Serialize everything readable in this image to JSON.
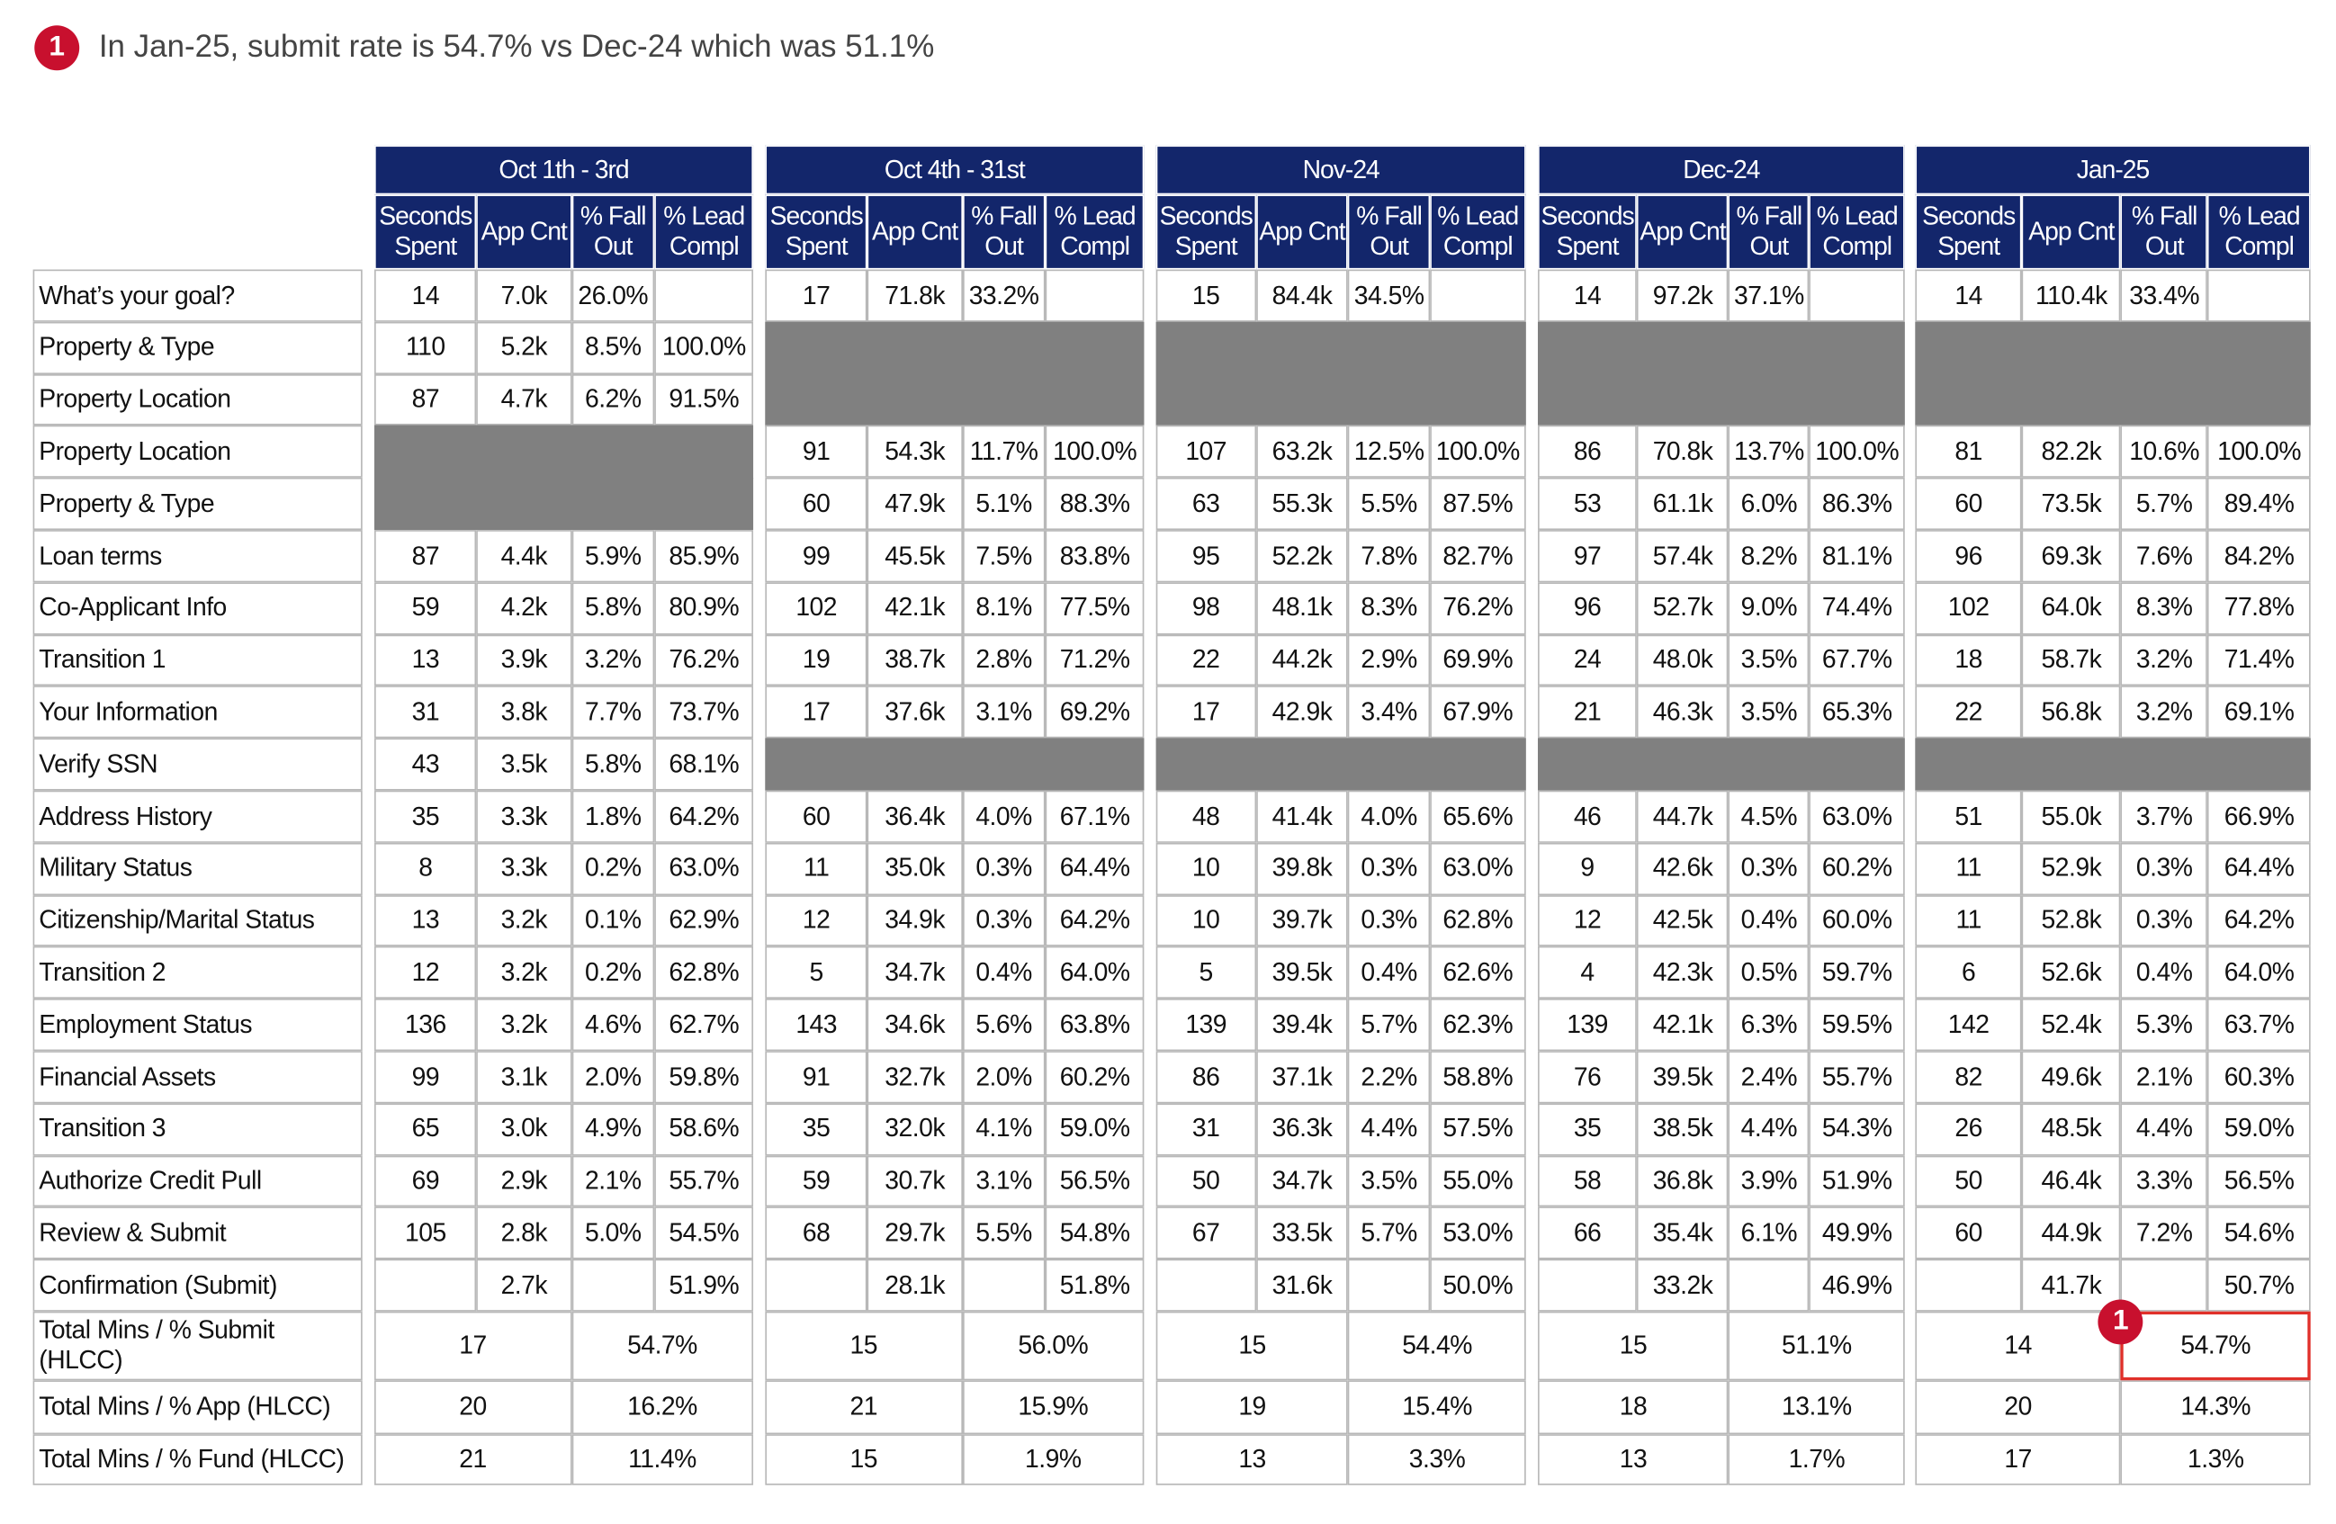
{
  "callout_marker": "1",
  "note": "In Jan-25, submit rate is 54.7% vs Dec-24 which was 51.1%",
  "groups": [
    "Oct 1th - 3rd",
    "Oct 4th - 31st",
    "Nov-24",
    "Dec-24",
    "Jan-25"
  ],
  "column_headers": [
    "Seconds Spent",
    "App Cnt",
    "% Fall Out",
    "% Lead Compl"
  ],
  "rows": [
    {
      "label": "What’s your goal?",
      "cells": [
        [
          14,
          "7.0k",
          "26.0%",
          null
        ],
        [
          17,
          "71.8k",
          "33.2%",
          null
        ],
        [
          15,
          "84.4k",
          "34.5%",
          null
        ],
        [
          14,
          "97.2k",
          "37.1%",
          null
        ],
        [
          14,
          "110.4k",
          "33.4%",
          null
        ]
      ]
    },
    {
      "label": "Property & Type",
      "cells": [
        [
          110,
          "5.2k",
          "8.5%",
          "100.0%"
        ],
        null,
        null,
        null,
        null
      ]
    },
    {
      "label": "Property Location",
      "cells": [
        [
          87,
          "4.7k",
          "6.2%",
          "91.5%"
        ],
        null,
        null,
        null,
        null
      ]
    },
    {
      "label": "Property Location",
      "cells": [
        null,
        [
          91,
          "54.3k",
          "11.7%",
          "100.0%"
        ],
        [
          107,
          "63.2k",
          "12.5%",
          "100.0%"
        ],
        [
          86,
          "70.8k",
          "13.7%",
          "100.0%"
        ],
        [
          81,
          "82.2k",
          "10.6%",
          "100.0%"
        ]
      ]
    },
    {
      "label": "Property & Type",
      "cells": [
        null,
        [
          60,
          "47.9k",
          "5.1%",
          "88.3%"
        ],
        [
          63,
          "55.3k",
          "5.5%",
          "87.5%"
        ],
        [
          53,
          "61.1k",
          "6.0%",
          "86.3%"
        ],
        [
          60,
          "73.5k",
          "5.7%",
          "89.4%"
        ]
      ]
    },
    {
      "label": "Loan terms",
      "cells": [
        [
          87,
          "4.4k",
          "5.9%",
          "85.9%"
        ],
        [
          99,
          "45.5k",
          "7.5%",
          "83.8%"
        ],
        [
          95,
          "52.2k",
          "7.8%",
          "82.7%"
        ],
        [
          97,
          "57.4k",
          "8.2%",
          "81.1%"
        ],
        [
          96,
          "69.3k",
          "7.6%",
          "84.2%"
        ]
      ]
    },
    {
      "label": "Co-Applicant Info",
      "cells": [
        [
          59,
          "4.2k",
          "5.8%",
          "80.9%"
        ],
        [
          102,
          "42.1k",
          "8.1%",
          "77.5%"
        ],
        [
          98,
          "48.1k",
          "8.3%",
          "76.2%"
        ],
        [
          96,
          "52.7k",
          "9.0%",
          "74.4%"
        ],
        [
          102,
          "64.0k",
          "8.3%",
          "77.8%"
        ]
      ]
    },
    {
      "label": "Transition 1",
      "cells": [
        [
          13,
          "3.9k",
          "3.2%",
          "76.2%"
        ],
        [
          19,
          "38.7k",
          "2.8%",
          "71.2%"
        ],
        [
          22,
          "44.2k",
          "2.9%",
          "69.9%"
        ],
        [
          24,
          "48.0k",
          "3.5%",
          "67.7%"
        ],
        [
          18,
          "58.7k",
          "3.2%",
          "71.4%"
        ]
      ]
    },
    {
      "label": "Your Information",
      "cells": [
        [
          31,
          "3.8k",
          "7.7%",
          "73.7%"
        ],
        [
          17,
          "37.6k",
          "3.1%",
          "69.2%"
        ],
        [
          17,
          "42.9k",
          "3.4%",
          "67.9%"
        ],
        [
          21,
          "46.3k",
          "3.5%",
          "65.3%"
        ],
        [
          22,
          "56.8k",
          "3.2%",
          "69.1%"
        ]
      ]
    },
    {
      "label": "Verify SSN",
      "cells": [
        [
          43,
          "3.5k",
          "5.8%",
          "68.1%"
        ],
        null,
        null,
        null,
        null
      ]
    },
    {
      "label": "Address History",
      "cells": [
        [
          35,
          "3.3k",
          "1.8%",
          "64.2%"
        ],
        [
          60,
          "36.4k",
          "4.0%",
          "67.1%"
        ],
        [
          48,
          "41.4k",
          "4.0%",
          "65.6%"
        ],
        [
          46,
          "44.7k",
          "4.5%",
          "63.0%"
        ],
        [
          51,
          "55.0k",
          "3.7%",
          "66.9%"
        ]
      ]
    },
    {
      "label": "Military Status",
      "cells": [
        [
          8,
          "3.3k",
          "0.2%",
          "63.0%"
        ],
        [
          11,
          "35.0k",
          "0.3%",
          "64.4%"
        ],
        [
          10,
          "39.8k",
          "0.3%",
          "63.0%"
        ],
        [
          9,
          "42.6k",
          "0.3%",
          "60.2%"
        ],
        [
          11,
          "52.9k",
          "0.3%",
          "64.4%"
        ]
      ]
    },
    {
      "label": "Citizenship/Marital Status",
      "cells": [
        [
          13,
          "3.2k",
          "0.1%",
          "62.9%"
        ],
        [
          12,
          "34.9k",
          "0.3%",
          "64.2%"
        ],
        [
          10,
          "39.7k",
          "0.3%",
          "62.8%"
        ],
        [
          12,
          "42.5k",
          "0.4%",
          "60.0%"
        ],
        [
          11,
          "52.8k",
          "0.3%",
          "64.2%"
        ]
      ]
    },
    {
      "label": "Transition 2",
      "cells": [
        [
          12,
          "3.2k",
          "0.2%",
          "62.8%"
        ],
        [
          5,
          "34.7k",
          "0.4%",
          "64.0%"
        ],
        [
          5,
          "39.5k",
          "0.4%",
          "62.6%"
        ],
        [
          4,
          "42.3k",
          "0.5%",
          "59.7%"
        ],
        [
          6,
          "52.6k",
          "0.4%",
          "64.0%"
        ]
      ]
    },
    {
      "label": "Employment Status",
      "cells": [
        [
          136,
          "3.2k",
          "4.6%",
          "62.7%"
        ],
        [
          143,
          "34.6k",
          "5.6%",
          "63.8%"
        ],
        [
          139,
          "39.4k",
          "5.7%",
          "62.3%"
        ],
        [
          139,
          "42.1k",
          "6.3%",
          "59.5%"
        ],
        [
          142,
          "52.4k",
          "5.3%",
          "63.7%"
        ]
      ]
    },
    {
      "label": "Financial Assets",
      "cells": [
        [
          99,
          "3.1k",
          "2.0%",
          "59.8%"
        ],
        [
          91,
          "32.7k",
          "2.0%",
          "60.2%"
        ],
        [
          86,
          "37.1k",
          "2.2%",
          "58.8%"
        ],
        [
          76,
          "39.5k",
          "2.4%",
          "55.7%"
        ],
        [
          82,
          "49.6k",
          "2.1%",
          "60.3%"
        ]
      ]
    },
    {
      "label": "Transition 3",
      "cells": [
        [
          65,
          "3.0k",
          "4.9%",
          "58.6%"
        ],
        [
          35,
          "32.0k",
          "4.1%",
          "59.0%"
        ],
        [
          31,
          "36.3k",
          "4.4%",
          "57.5%"
        ],
        [
          35,
          "38.5k",
          "4.4%",
          "54.3%"
        ],
        [
          26,
          "48.5k",
          "4.4%",
          "59.0%"
        ]
      ]
    },
    {
      "label": "Authorize Credit Pull",
      "cells": [
        [
          69,
          "2.9k",
          "2.1%",
          "55.7%"
        ],
        [
          59,
          "30.7k",
          "3.1%",
          "56.5%"
        ],
        [
          50,
          "34.7k",
          "3.5%",
          "55.0%"
        ],
        [
          58,
          "36.8k",
          "3.9%",
          "51.9%"
        ],
        [
          50,
          "46.4k",
          "3.3%",
          "56.5%"
        ]
      ]
    },
    {
      "label": "Review & Submit",
      "cells": [
        [
          105,
          "2.8k",
          "5.0%",
          "54.5%"
        ],
        [
          68,
          "29.7k",
          "5.5%",
          "54.8%"
        ],
        [
          67,
          "33.5k",
          "5.7%",
          "53.0%"
        ],
        [
          66,
          "35.4k",
          "6.1%",
          "49.9%"
        ],
        [
          60,
          "44.9k",
          "7.2%",
          "54.6%"
        ]
      ]
    },
    {
      "label": "Confirmation (Submit)",
      "cells": [
        [
          null,
          "2.7k",
          null,
          "51.9%"
        ],
        [
          null,
          "28.1k",
          null,
          "51.8%"
        ],
        [
          null,
          "31.6k",
          null,
          "50.0%"
        ],
        [
          null,
          "33.2k",
          null,
          "46.9%"
        ],
        [
          null,
          "41.7k",
          null,
          "50.7%"
        ]
      ]
    }
  ],
  "totals": [
    {
      "label": "Total Mins / % Submit (HLCC)",
      "cells": [
        [
          17,
          "54.7%"
        ],
        [
          15,
          "56.0%"
        ],
        [
          15,
          "54.4%"
        ],
        [
          15,
          "51.1%"
        ],
        [
          14,
          "54.7%"
        ]
      ]
    },
    {
      "label": "Total Mins / % App (HLCC)",
      "cells": [
        [
          20,
          "16.2%"
        ],
        [
          21,
          "15.9%"
        ],
        [
          19,
          "15.4%"
        ],
        [
          18,
          "13.1%"
        ],
        [
          20,
          "14.3%"
        ]
      ]
    },
    {
      "label": "Total Mins / % Fund (HLCC)",
      "cells": [
        [
          21,
          "11.4%"
        ],
        [
          15,
          "1.9%"
        ],
        [
          13,
          "3.3%"
        ],
        [
          13,
          "1.7%"
        ],
        [
          17,
          "1.3%"
        ]
      ]
    }
  ]
}
